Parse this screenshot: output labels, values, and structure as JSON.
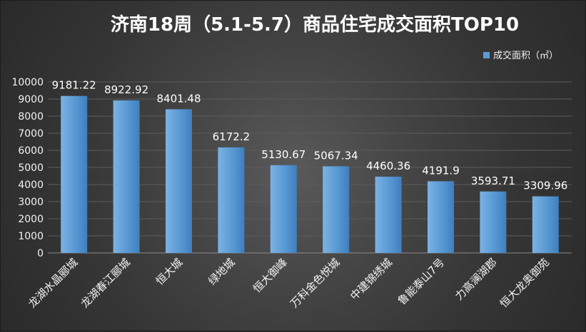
{
  "chart_data": {
    "type": "bar",
    "title": "济南18周（5.1-5.7）商品住宅成交面积TOP10",
    "categories": [
      "龙湖水晶郦城",
      "龙湖春江郦城",
      "恒大城",
      "绿地城",
      "恒大御峰",
      "万科金色悦城",
      "中建锦绣城",
      "鲁能泰山7号",
      "力高澜湖郡",
      "恒大龙奥御苑"
    ],
    "series": [
      {
        "name": "成交面积（㎡）",
        "values": [
          9181.22,
          8922.92,
          8401.48,
          6172.2,
          5130.67,
          5067.34,
          4460.36,
          4191.9,
          3593.71,
          3309.96
        ],
        "labels": [
          "9181.22",
          "8922.92",
          "8401.48",
          "6172.2",
          "5130.67",
          "5067.34",
          "4460.36",
          "4191.9",
          "3593.71",
          "3309.96"
        ]
      }
    ],
    "ylim": [
      0,
      10000
    ],
    "yticks": [
      0,
      1000,
      2000,
      3000,
      4000,
      5000,
      6000,
      7000,
      8000,
      9000,
      10000
    ],
    "grid": true,
    "legend": "top-right",
    "colors": {
      "bar": "#5b9bd5",
      "bar_light": "#7cb2e3",
      "bar_dark": "#3f7fbf"
    }
  }
}
